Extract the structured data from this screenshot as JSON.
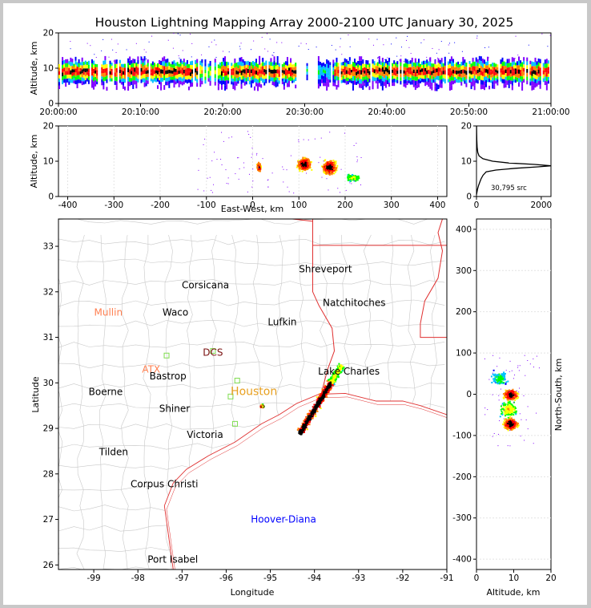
{
  "chart_data": [
    {
      "id": "time-height",
      "type": "heatmap",
      "title": "Houston Lightning Mapping Array 2000-2100 UTC January 30, 2025",
      "ylabel": "Altitude, km",
      "xlim": [
        "20:00:00",
        "21:00:00"
      ],
      "ylim": [
        0,
        20
      ],
      "xticks": [
        "20:00:00",
        "20:10:00",
        "20:20:00",
        "20:30:00",
        "20:40:00",
        "20:50:00",
        "21:00:00"
      ],
      "yticks": [
        0,
        10,
        20
      ],
      "band_altitude_km": [
        6,
        11
      ],
      "core_altitude_km": 9
    },
    {
      "id": "east-west-altitude",
      "type": "heatmap",
      "xlabel": "East-West, km",
      "ylabel": "Altitude, km",
      "xlim": [
        -420,
        420
      ],
      "ylim": [
        0,
        20
      ],
      "xticks": [
        -400,
        -300,
        -200,
        -100,
        0,
        100,
        200,
        300,
        400
      ],
      "yticks": [
        0,
        10,
        20
      ],
      "clusters": [
        {
          "x_range_km": [
            0,
            25
          ],
          "alt_range_km": [
            5,
            11
          ]
        },
        {
          "x_range_km": [
            90,
            250
          ],
          "alt_range_km": [
            1,
            14
          ]
        }
      ]
    },
    {
      "id": "altitude-histogram",
      "type": "line",
      "xlim": [
        0,
        2300
      ],
      "ylim": [
        0,
        20
      ],
      "xticks": [
        0,
        2000
      ],
      "yticks": [
        0,
        10,
        20
      ],
      "annotation": "30,795 src",
      "points": [
        [
          0,
          0.5
        ],
        [
          30,
          2
        ],
        [
          60,
          3
        ],
        [
          100,
          4
        ],
        [
          140,
          5
        ],
        [
          200,
          6
        ],
        [
          300,
          7
        ],
        [
          600,
          7.5
        ],
        [
          1200,
          8
        ],
        [
          1900,
          8.4
        ],
        [
          2300,
          8.7
        ],
        [
          1800,
          9.1
        ],
        [
          1000,
          9.5
        ],
        [
          500,
          10
        ],
        [
          200,
          10.7
        ],
        [
          80,
          11.5
        ],
        [
          40,
          12.5
        ],
        [
          20,
          14
        ],
        [
          10,
          16
        ],
        [
          5,
          18
        ],
        [
          2,
          20
        ]
      ]
    },
    {
      "id": "plan-view-map",
      "type": "scatter",
      "xlabel": "Longitude",
      "ylabel": "Latitude",
      "xlim": [
        -99.8,
        -91
      ],
      "ylim": [
        25.9,
        33.6
      ],
      "xticks": [
        -99,
        -98,
        -97,
        -96,
        -95,
        -94,
        -93,
        -92,
        -91
      ],
      "yticks": [
        26,
        27,
        28,
        29,
        30,
        31,
        32,
        33
      ],
      "cities": [
        {
          "name": "Shreveport",
          "lon": -93.75,
          "lat": 32.5,
          "color": "#000000"
        },
        {
          "name": "Corsicana",
          "lon": -96.47,
          "lat": 32.15,
          "color": "#000000"
        },
        {
          "name": "Natchitoches",
          "lon": -93.1,
          "lat": 31.76,
          "color": "#000000"
        },
        {
          "name": "Mullin",
          "lon": -98.67,
          "lat": 31.55,
          "color": "#ff7f50"
        },
        {
          "name": "Waco",
          "lon": -97.15,
          "lat": 31.55,
          "color": "#000000"
        },
        {
          "name": "Lufkin",
          "lon": -94.73,
          "lat": 31.34,
          "color": "#000000"
        },
        {
          "name": "DCS",
          "lon": -96.3,
          "lat": 30.67,
          "color": "#7a1010"
        },
        {
          "name": "ATX",
          "lon": -97.7,
          "lat": 30.3,
          "color": "#ff7f50"
        },
        {
          "name": "Lake Charles",
          "lon": -93.22,
          "lat": 30.25,
          "color": "#000000"
        },
        {
          "name": "Bastrop",
          "lon": -97.32,
          "lat": 30.15,
          "color": "#000000"
        },
        {
          "name": "Houston",
          "lon": -95.37,
          "lat": 29.8,
          "color": "#e8a020"
        },
        {
          "name": "Boerne",
          "lon": -98.73,
          "lat": 29.8,
          "color": "#000000"
        },
        {
          "name": "Shiner",
          "lon": -97.17,
          "lat": 29.43,
          "color": "#000000"
        },
        {
          "name": "Victoria",
          "lon": -96.48,
          "lat": 28.86,
          "color": "#000000"
        },
        {
          "name": "Tilden",
          "lon": -98.55,
          "lat": 28.48,
          "color": "#000000"
        },
        {
          "name": "Corpus Christi",
          "lon": -97.4,
          "lat": 27.78,
          "color": "#000000"
        },
        {
          "name": "Hoover-Diana",
          "lon": -94.7,
          "lat": 27.0,
          "color": "#0000ff"
        },
        {
          "name": "Port Isabel",
          "lon": -97.21,
          "lat": 26.12,
          "color": "#000000"
        }
      ],
      "storm_line": {
        "start": {
          "lon": -94.35,
          "lat": 28.9
        },
        "end": {
          "lon": -93.4,
          "lat": 30.4
        }
      },
      "storm_cell": {
        "lon": -95.2,
        "lat": 29.5
      }
    },
    {
      "id": "altitude-north-south",
      "type": "heatmap",
      "xlabel": "Altitude, km",
      "ylabel": "North-South, km",
      "xlim": [
        0,
        20
      ],
      "ylim": [
        -425,
        425
      ],
      "xticks": [
        0,
        10,
        20
      ],
      "yticks": [
        -400,
        -300,
        -200,
        -100,
        0,
        100,
        200,
        300,
        400
      ],
      "clusters": [
        {
          "alt_range_km": [
            1,
            15
          ],
          "ns_range_km": [
            -125,
            100
          ]
        }
      ]
    }
  ],
  "colors": {
    "density_scale": [
      "#8000ff",
      "#0000ff",
      "#00c0ff",
      "#00ff00",
      "#ffff00",
      "#ff8000",
      "#ff0000",
      "#000000"
    ],
    "county_lines": "#c8c8c8",
    "state_lines": "#e03030",
    "frame_border": "#c8c8c8"
  }
}
